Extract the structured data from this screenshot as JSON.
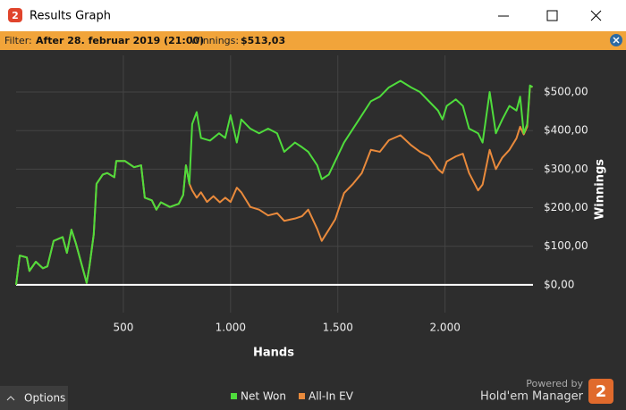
{
  "window": {
    "title": "Results Graph",
    "logo": "2",
    "filter_label": "Filter:",
    "filter_value": "After 28. februar 2019 (21:00)",
    "winnings_label": "Winnings:",
    "winnings_value": "$513,03",
    "options": "Options",
    "powered_by": "Powered by",
    "brand": "Hold'em Manager"
  },
  "chart_data": {
    "type": "line",
    "x_label": "Hands",
    "y_label": "Winnings",
    "xlim": [
      0,
      2410
    ],
    "ylim": [
      -72,
      595
    ],
    "xticks": [
      500,
      {
        "value": 1000,
        "label": "1.000"
      },
      {
        "value": 1500,
        "label": "1.500"
      },
      {
        "value": 2000,
        "label": "2.000"
      }
    ],
    "yticks": [
      {
        "value": 0,
        "label": "$0,00"
      },
      {
        "value": 100,
        "label": "$100,00"
      },
      {
        "value": 200,
        "label": "$200,00"
      },
      {
        "value": 300,
        "label": "$300,00"
      },
      {
        "value": 400,
        "label": "$400,00"
      },
      {
        "value": 500,
        "label": "$500,00"
      }
    ],
    "grid": true,
    "series": [
      {
        "name": "Net Won",
        "color": "#4fdc3c",
        "x": [
          0,
          17,
          50,
          62,
          92,
          125,
          146,
          175,
          217,
          237,
          258,
          279,
          308,
          329,
          342,
          362,
          375,
          404,
          425,
          458,
          467,
          508,
          550,
          583,
          600,
          633,
          654,
          675,
          717,
          758,
          779,
          792,
          808,
          821,
          842,
          862,
          904,
          946,
          975,
          1000,
          1029,
          1050,
          1092,
          1133,
          1175,
          1217,
          1250,
          1300,
          1333,
          1362,
          1404,
          1425,
          1458,
          1488,
          1529,
          1571,
          1612,
          1654,
          1696,
          1738,
          1792,
          1842,
          1883,
          1925,
          1967,
          1988,
          2008,
          2050,
          2083,
          2112,
          2154,
          2175,
          2208,
          2237,
          2267,
          2300,
          2333,
          2350,
          2367,
          2383,
          2396,
          2408
        ],
        "values": [
          0,
          76,
          71,
          36,
          60,
          43,
          48,
          114,
          124,
          83,
          143,
          107,
          48,
          5,
          48,
          131,
          262,
          286,
          290,
          279,
          321,
          321,
          305,
          310,
          226,
          219,
          195,
          214,
          202,
          210,
          233,
          310,
          262,
          417,
          448,
          381,
          374,
          393,
          381,
          440,
          369,
          429,
          405,
          393,
          405,
          393,
          345,
          369,
          357,
          345,
          310,
          274,
          286,
          321,
          369,
          405,
          440,
          476,
          488,
          512,
          529,
          512,
          500,
          476,
          452,
          429,
          464,
          481,
          464,
          405,
          393,
          369,
          500,
          393,
          429,
          464,
          452,
          488,
          393,
          417,
          517,
          513
        ]
      },
      {
        "name": "All-In EV",
        "color": "#e98a3c",
        "x": [
          0,
          17,
          50,
          62,
          92,
          125,
          146,
          175,
          217,
          237,
          258,
          279,
          308,
          329,
          342,
          362,
          375,
          404,
          425,
          458,
          467,
          508,
          550,
          583,
          600,
          633,
          654,
          675,
          717,
          758,
          779,
          792,
          808,
          821,
          842,
          862,
          890,
          920,
          950,
          975,
          1000,
          1029,
          1050,
          1092,
          1133,
          1175,
          1217,
          1250,
          1300,
          1333,
          1362,
          1404,
          1425,
          1458,
          1488,
          1529,
          1571,
          1612,
          1654,
          1696,
          1738,
          1792,
          1842,
          1883,
          1925,
          1967,
          1988,
          2008,
          2050,
          2083,
          2112,
          2154,
          2175,
          2208,
          2237,
          2267,
          2300,
          2333,
          2350,
          2367,
          2383,
          2396,
          2408
        ],
        "values": [
          0,
          76,
          71,
          36,
          60,
          43,
          48,
          114,
          124,
          83,
          143,
          107,
          48,
          5,
          48,
          131,
          262,
          286,
          290,
          279,
          321,
          321,
          305,
          310,
          226,
          219,
          195,
          214,
          202,
          210,
          233,
          310,
          262,
          245,
          226,
          240,
          215,
          230,
          214,
          226,
          215,
          252,
          240,
          202,
          195,
          180,
          186,
          166,
          172,
          178,
          195,
          145,
          114,
          143,
          170,
          238,
          262,
          290,
          350,
          345,
          375,
          388,
          362,
          345,
          333,
          300,
          290,
          320,
          333,
          340,
          290,
          245,
          260,
          350,
          300,
          330,
          350,
          380,
          410,
          390,
          410,
          515,
          513
        ]
      }
    ]
  }
}
